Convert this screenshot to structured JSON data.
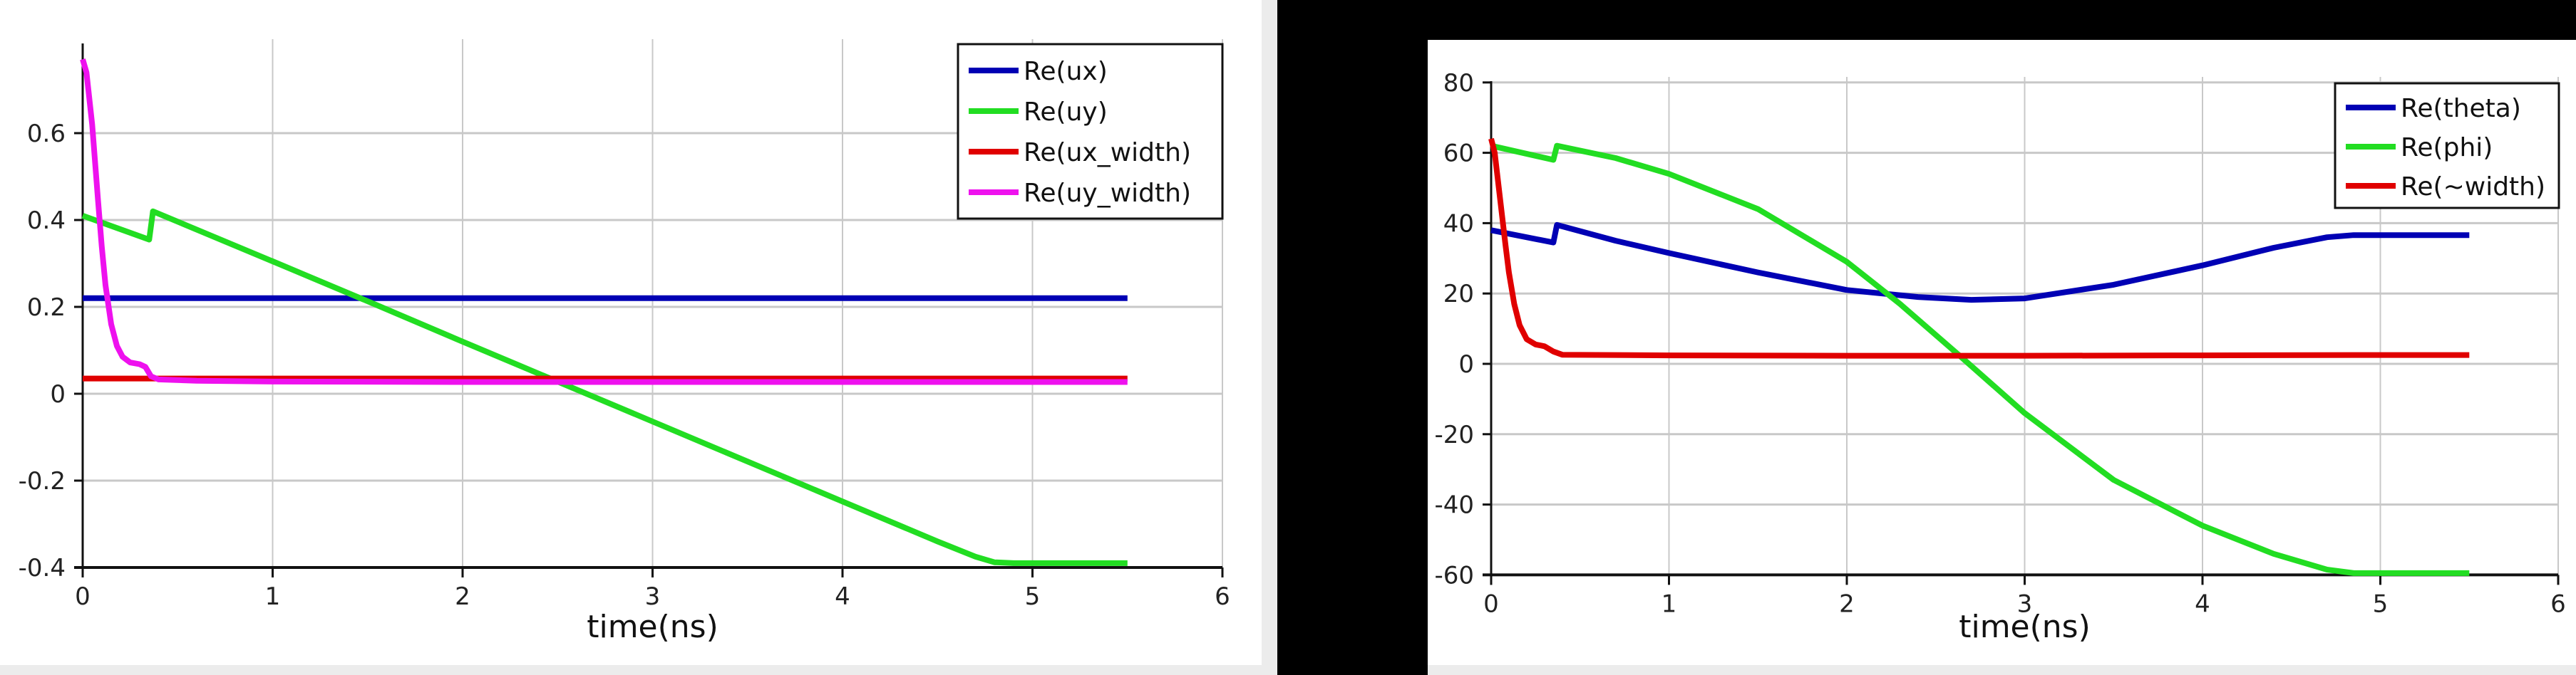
{
  "layout": {
    "background": "#ececec",
    "black_color": "#000000",
    "grid_color": "#c8c8c8",
    "axis_color": "#111111"
  },
  "chart_data": [
    {
      "type": "line",
      "title": "",
      "xlabel": "time(ns)",
      "ylabel": "",
      "xlim": [
        0,
        6
      ],
      "ylim": [
        -0.4,
        0.8
      ],
      "xticks": [
        0,
        1,
        2,
        3,
        4,
        5,
        6
      ],
      "xtick_labels": [
        "0",
        "1",
        "2",
        "3",
        "4",
        "5",
        "6"
      ],
      "yticks": [
        -0.4,
        -0.2,
        0,
        0.2,
        0.4,
        0.6
      ],
      "ytick_labels": [
        "-0.4",
        "-0.2",
        "0",
        "0.2",
        "0.4",
        "0.6"
      ],
      "grid": true,
      "legend_position": "upper right",
      "series": [
        {
          "name": "Re(ux)",
          "color": "#0000b4",
          "x": [
            0,
            5.5
          ],
          "y": [
            0.22,
            0.22
          ]
        },
        {
          "name": "Re(uy)",
          "color": "#22dd22",
          "x": [
            0,
            0.35,
            0.37,
            1.0,
            1.5,
            2.0,
            2.5,
            3.0,
            3.5,
            4.0,
            4.5,
            4.7,
            4.8,
            4.9,
            5.5
          ],
          "y": [
            0.41,
            0.355,
            0.42,
            0.305,
            0.213,
            0.12,
            0.028,
            -0.064,
            -0.156,
            -0.248,
            -0.34,
            -0.375,
            -0.388,
            -0.39,
            -0.39
          ]
        },
        {
          "name": "Re(ux_width)",
          "color": "#e00000",
          "x": [
            0,
            5.5
          ],
          "y": [
            0.035,
            0.035
          ]
        },
        {
          "name": "Re(uy_width)",
          "color": "#ee11ee",
          "x": [
            0,
            0.02,
            0.05,
            0.08,
            0.1,
            0.12,
            0.15,
            0.18,
            0.21,
            0.25,
            0.3,
            0.33,
            0.36,
            0.4,
            0.6,
            1.0,
            2.0,
            3.0,
            4.0,
            5.0,
            5.5
          ],
          "y": [
            0.77,
            0.74,
            0.62,
            0.45,
            0.34,
            0.25,
            0.16,
            0.11,
            0.085,
            0.072,
            0.068,
            0.062,
            0.04,
            0.033,
            0.03,
            0.028,
            0.027,
            0.027,
            0.027,
            0.027,
            0.027
          ]
        }
      ]
    },
    {
      "type": "line",
      "title": "",
      "xlabel": "time(ns)",
      "ylabel": "",
      "xlim": [
        0,
        6
      ],
      "ylim": [
        -60,
        80
      ],
      "xticks": [
        0,
        1,
        2,
        3,
        4,
        5,
        6
      ],
      "xtick_labels": [
        "0",
        "1",
        "2",
        "3",
        "4",
        "5",
        "6"
      ],
      "yticks": [
        -60,
        -40,
        -20,
        0,
        20,
        40,
        60,
        80
      ],
      "ytick_labels": [
        "-60",
        "-40",
        "-20",
        "0",
        "20",
        "40",
        "60",
        "80"
      ],
      "grid": true,
      "legend_position": "upper right",
      "series": [
        {
          "name": "Re(theta)",
          "color": "#0000b4",
          "x": [
            0,
            0.35,
            0.37,
            0.7,
            1.0,
            1.5,
            2.0,
            2.4,
            2.7,
            3.0,
            3.5,
            4.0,
            4.4,
            4.7,
            4.85,
            5.5
          ],
          "y": [
            38,
            34.5,
            39.5,
            35,
            31.5,
            26,
            21,
            19,
            18.2,
            18.6,
            22.5,
            28,
            33,
            36,
            36.6,
            36.6
          ]
        },
        {
          "name": "Re(phi)",
          "color": "#22dd22",
          "x": [
            0,
            0.35,
            0.37,
            0.7,
            1.0,
            1.5,
            2.0,
            2.3,
            2.63,
            3.0,
            3.5,
            4.0,
            4.4,
            4.7,
            4.85,
            5.5
          ],
          "y": [
            62,
            58,
            62,
            58.5,
            54,
            44,
            29,
            17,
            2.5,
            -14,
            -33,
            -46,
            -54,
            -58.5,
            -59.5,
            -59.5
          ]
        },
        {
          "name": "Re(~width)",
          "color": "#e00000",
          "x": [
            0,
            0.02,
            0.05,
            0.08,
            0.1,
            0.13,
            0.16,
            0.2,
            0.25,
            0.3,
            0.35,
            0.4,
            1.0,
            2.0,
            3.0,
            4.0,
            5.0,
            5.5
          ],
          "y": [
            64,
            60,
            47,
            34,
            26,
            17,
            11,
            7,
            5.5,
            5,
            3.5,
            2.6,
            2.4,
            2.3,
            2.3,
            2.4,
            2.5,
            2.5
          ]
        }
      ]
    }
  ]
}
